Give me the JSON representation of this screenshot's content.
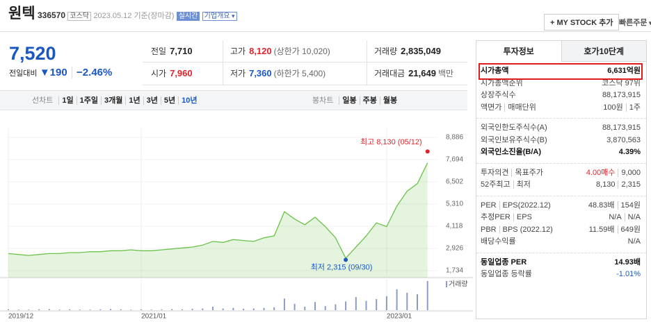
{
  "header": {
    "name": "원텍",
    "code": "336570",
    "market": "코스닥",
    "date": "2023.05.12 기준(장마감)",
    "realtime": "실시간",
    "overview": "기업개요",
    "my_stock": "+ MY STOCK 추가",
    "quick_order": "빠른주문"
  },
  "price": {
    "current": "7,520",
    "change_label": "전일대비",
    "change": "▼190",
    "change_pct": "−2.46%",
    "stats": [
      [
        {
          "label": "전일",
          "value": "7,710"
        },
        {
          "label": "고가",
          "value": "8,120",
          "note": "(상한가 10,020)",
          "tone": "up"
        },
        {
          "label": "거래량",
          "value": "2,835,049"
        }
      ],
      [
        {
          "label": "시가",
          "value": "7,960",
          "tone": "up"
        },
        {
          "label": "저가",
          "value": "7,360",
          "note": "(하한가 5,400)",
          "tone": "down"
        },
        {
          "label": "거래대금",
          "value": "21,649",
          "note": "백만"
        }
      ]
    ]
  },
  "tabs": {
    "line": [
      "선차트",
      "1일",
      "1주일",
      "3개월",
      "1년",
      "3년",
      "5년",
      "10년"
    ],
    "line_selected": 7,
    "candle": [
      "봉차트",
      "일봉",
      "주봉",
      "월봉"
    ]
  },
  "chart": {
    "type": "line",
    "categories": [
      "2019/12",
      null,
      null,
      null,
      null,
      null,
      null,
      null,
      null,
      null,
      null,
      null,
      null,
      "2021/01",
      null,
      null,
      null,
      null,
      null,
      null,
      null,
      null,
      null,
      null,
      null,
      null,
      null,
      null,
      null,
      null,
      null,
      null,
      null,
      null,
      null,
      null,
      null,
      "2023/01",
      null,
      null,
      null,
      null
    ],
    "values": [
      2650,
      2600,
      2550,
      2600,
      2650,
      2650,
      2700,
      2700,
      2750,
      2750,
      2800,
      2800,
      2850,
      2800,
      2800,
      2850,
      2900,
      2950,
      3000,
      3100,
      3300,
      3250,
      3400,
      3350,
      3300,
      3500,
      3600,
      4900,
      4500,
      4200,
      4600,
      4100,
      3500,
      2400,
      3000,
      3600,
      4300,
      4100,
      5200,
      6000,
      6400,
      7520
    ],
    "color": "#6cc24a",
    "ylim": [
      1360,
      9370
    ],
    "yticks": [
      {
        "value": 8886,
        "label": "8,886"
      },
      {
        "value": 7694,
        "label": "7,694"
      },
      {
        "value": 6502,
        "label": "6,502"
      },
      {
        "value": 5310,
        "label": "5,310"
      },
      {
        "value": 4118,
        "label": "4,118"
      },
      {
        "value": 2926,
        "label": "2,926"
      },
      {
        "value": 1734,
        "label": "1,734"
      }
    ],
    "high": {
      "value": 8130,
      "label": "최고 8,130 (05/12)"
    },
    "low": {
      "value": 2315,
      "label": "최저 2,315 (09/30)"
    },
    "volume": {
      "name": "거래량",
      "color": "#8a9cc4",
      "values": [
        3,
        2,
        2,
        3,
        4,
        2,
        3,
        2,
        2,
        3,
        4,
        3,
        2,
        3,
        2,
        3,
        4,
        3,
        5,
        6,
        12,
        6,
        8,
        5,
        6,
        8,
        10,
        40,
        22,
        12,
        28,
        14,
        20,
        30,
        45,
        32,
        38,
        48,
        72,
        60,
        55,
        100
      ]
    }
  },
  "invest": {
    "tabs": [
      "투자정보",
      "호가10단계"
    ],
    "groups": [
      [
        {
          "label": [
            "시가총액"
          ],
          "value": [
            "6,631억원"
          ],
          "strong": true,
          "boxed": true
        },
        {
          "label": [
            "시가총액순위"
          ],
          "value": [
            "코스닥 97위"
          ]
        },
        {
          "label": [
            "상장주식수"
          ],
          "value": [
            "88,173,915"
          ]
        },
        {
          "label": [
            "액면가",
            "매매단위"
          ],
          "value": [
            "100원",
            "1주"
          ]
        }
      ],
      [
        {
          "label": [
            "외국인한도주식수(A)"
          ],
          "value": [
            "88,173,915"
          ]
        },
        {
          "label": [
            "외국인보유주식수(B)"
          ],
          "value": [
            "3,870,563"
          ]
        },
        {
          "label": [
            "외국인소진율(B/A)"
          ],
          "value": [
            "4.39%"
          ],
          "strong": true
        }
      ],
      [
        {
          "label": [
            "투자의견",
            "목표주가"
          ],
          "value": [
            "4.00매수",
            "9,000"
          ],
          "tone": "up"
        },
        {
          "label": [
            "52주최고",
            "최저"
          ],
          "value": [
            "8,130",
            "2,315"
          ]
        }
      ],
      [
        {
          "label": [
            "PER",
            "EPS(2022.12)"
          ],
          "value": [
            "48.83배",
            "154원"
          ]
        },
        {
          "label": [
            "추정PER",
            "EPS"
          ],
          "value": [
            "N/A",
            "N/A"
          ]
        },
        {
          "label": [
            "PBR",
            "BPS (2022.12)"
          ],
          "value": [
            "11.59배",
            "649원"
          ]
        },
        {
          "label": [
            "배당수익률"
          ],
          "value": [
            "N/A"
          ]
        }
      ],
      [
        {
          "label": [
            "동일업종 PER"
          ],
          "value": [
            "14.93배"
          ],
          "strong": true
        },
        {
          "label": [
            "동일업종 등락률"
          ],
          "value": [
            "-1.01%"
          ],
          "tone": "down"
        }
      ]
    ]
  }
}
